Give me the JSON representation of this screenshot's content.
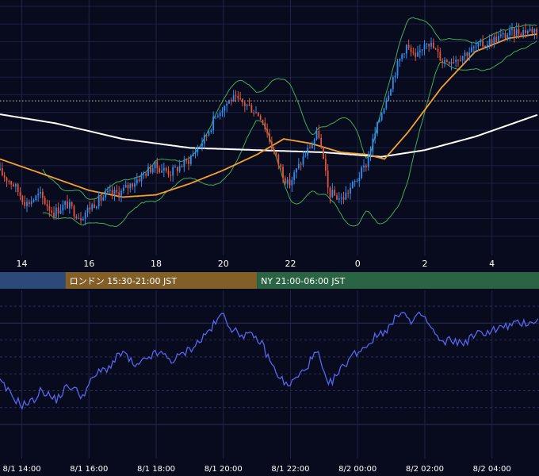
{
  "chart_data": [
    {
      "type": "candlestick",
      "title": "",
      "x_ticks": [
        "14",
        "16",
        "18",
        "20",
        "22",
        "0",
        "2",
        "4"
      ],
      "x_tick_hours": [
        14,
        16,
        18,
        20,
        22,
        24,
        26,
        28
      ],
      "x_range_hours": [
        13.35,
        29.4
      ],
      "y_range": [
        0,
        1
      ],
      "grid": true,
      "reference_line": {
        "style": "dotted",
        "color": "#ffffff",
        "value": 0.62
      },
      "colors": {
        "up": "#2f8ff0",
        "down": "#e4563b",
        "ma_long": "#ffffff",
        "ma_mid": "#f5a030",
        "bollinger": "#3fae55"
      },
      "ohlc_anchors": [
        {
          "t": 13.35,
          "c": 0.31
        },
        {
          "t": 13.8,
          "c": 0.25
        },
        {
          "t": 14.2,
          "c": 0.16
        },
        {
          "t": 14.6,
          "c": 0.2
        },
        {
          "t": 15.0,
          "c": 0.12
        },
        {
          "t": 15.4,
          "c": 0.16
        },
        {
          "t": 15.8,
          "c": 0.1
        },
        {
          "t": 16.2,
          "c": 0.16
        },
        {
          "t": 16.6,
          "c": 0.2
        },
        {
          "t": 17.0,
          "c": 0.21
        },
        {
          "t": 17.5,
          "c": 0.27
        },
        {
          "t": 18.0,
          "c": 0.33
        },
        {
          "t": 18.5,
          "c": 0.3
        },
        {
          "t": 19.0,
          "c": 0.35
        },
        {
          "t": 19.5,
          "c": 0.45
        },
        {
          "t": 19.9,
          "c": 0.57
        },
        {
          "t": 20.3,
          "c": 0.63
        },
        {
          "t": 20.8,
          "c": 0.6
        },
        {
          "t": 21.2,
          "c": 0.55
        },
        {
          "t": 21.6,
          "c": 0.38
        },
        {
          "t": 22.0,
          "c": 0.24
        },
        {
          "t": 22.5,
          "c": 0.38
        },
        {
          "t": 22.9,
          "c": 0.48
        },
        {
          "t": 23.2,
          "c": 0.21
        },
        {
          "t": 23.6,
          "c": 0.18
        },
        {
          "t": 24.0,
          "c": 0.26
        },
        {
          "t": 24.3,
          "c": 0.33
        },
        {
          "t": 24.8,
          "c": 0.58
        },
        {
          "t": 25.2,
          "c": 0.76
        },
        {
          "t": 25.5,
          "c": 0.87
        },
        {
          "t": 25.8,
          "c": 0.8
        },
        {
          "t": 26.1,
          "c": 0.9
        },
        {
          "t": 26.6,
          "c": 0.8
        },
        {
          "t": 27.0,
          "c": 0.81
        },
        {
          "t": 27.6,
          "c": 0.86
        },
        {
          "t": 28.2,
          "c": 0.9
        },
        {
          "t": 28.8,
          "c": 0.93
        },
        {
          "t": 29.4,
          "c": 0.94
        }
      ],
      "series": [
        {
          "name": "",
          "color": "#ffffff",
          "values": [
            [
              13.35,
              0.56
            ],
            [
              15.0,
              0.52
            ],
            [
              17.0,
              0.45
            ],
            [
              19.0,
              0.41
            ],
            [
              21.0,
              0.4
            ],
            [
              23.0,
              0.39
            ],
            [
              24.7,
              0.37
            ],
            [
              26.0,
              0.4
            ],
            [
              27.5,
              0.46
            ],
            [
              29.4,
              0.56
            ]
          ]
        },
        {
          "name": "",
          "color": "#f5a030",
          "values": [
            [
              13.35,
              0.36
            ],
            [
              14.5,
              0.3
            ],
            [
              16.0,
              0.22
            ],
            [
              17.0,
              0.19
            ],
            [
              18.0,
              0.2
            ],
            [
              19.0,
              0.25
            ],
            [
              20.0,
              0.31
            ],
            [
              21.0,
              0.38
            ],
            [
              21.8,
              0.45
            ],
            [
              22.6,
              0.43
            ],
            [
              23.5,
              0.39
            ],
            [
              24.3,
              0.38
            ],
            [
              24.8,
              0.36
            ],
            [
              25.5,
              0.48
            ],
            [
              26.5,
              0.68
            ],
            [
              27.5,
              0.84
            ],
            [
              28.5,
              0.9
            ],
            [
              29.4,
              0.92
            ]
          ]
        }
      ]
    },
    {
      "type": "line",
      "title": "",
      "x_ticks": [
        "8/1 14:00",
        "8/1 16:00",
        "8/1 18:00",
        "8/1 20:00",
        "8/1 22:00",
        "8/2 00:00",
        "8/2 02:00",
        "8/2 04:00"
      ],
      "x_tick_hours": [
        14,
        16,
        18,
        20,
        22,
        24,
        26,
        28
      ],
      "x_range_hours": [
        13.35,
        29.4
      ],
      "y_range": [
        0,
        1
      ],
      "grid": true,
      "color": "#5965ee",
      "values_anchor": [
        [
          13.35,
          0.45
        ],
        [
          13.7,
          0.36
        ],
        [
          14.0,
          0.3
        ],
        [
          14.3,
          0.32
        ],
        [
          14.6,
          0.4
        ],
        [
          15.0,
          0.33
        ],
        [
          15.4,
          0.43
        ],
        [
          15.8,
          0.36
        ],
        [
          16.2,
          0.5
        ],
        [
          16.6,
          0.55
        ],
        [
          17.0,
          0.65
        ],
        [
          17.4,
          0.54
        ],
        [
          17.8,
          0.62
        ],
        [
          18.1,
          0.64
        ],
        [
          18.5,
          0.59
        ],
        [
          18.9,
          0.65
        ],
        [
          19.3,
          0.72
        ],
        [
          19.7,
          0.82
        ],
        [
          20.0,
          0.9
        ],
        [
          20.3,
          0.78
        ],
        [
          20.7,
          0.76
        ],
        [
          21.1,
          0.72
        ],
        [
          21.5,
          0.54
        ],
        [
          21.9,
          0.42
        ],
        [
          22.3,
          0.5
        ],
        [
          22.8,
          0.65
        ],
        [
          23.1,
          0.42
        ],
        [
          23.4,
          0.5
        ],
        [
          23.8,
          0.62
        ],
        [
          24.2,
          0.68
        ],
        [
          24.6,
          0.76
        ],
        [
          25.0,
          0.82
        ],
        [
          25.3,
          0.93
        ],
        [
          25.6,
          0.83
        ],
        [
          25.9,
          0.9
        ],
        [
          26.2,
          0.8
        ],
        [
          26.5,
          0.7
        ],
        [
          26.8,
          0.73
        ],
        [
          27.1,
          0.7
        ],
        [
          27.5,
          0.76
        ],
        [
          28.0,
          0.79
        ],
        [
          28.5,
          0.82
        ],
        [
          29.0,
          0.84
        ],
        [
          29.4,
          0.86
        ]
      ]
    }
  ],
  "sessions": [
    {
      "label": "",
      "color": "#2b4a79",
      "start": 13.35,
      "end": 15.3
    },
    {
      "label": "ロンドン 15:30-21:00 JST",
      "color": "#825f27",
      "start": 15.3,
      "end": 21.0
    },
    {
      "label": "NY 21:00-06:00 JST",
      "color": "#2a6443",
      "start": 21.0,
      "end": 29.4
    }
  ]
}
